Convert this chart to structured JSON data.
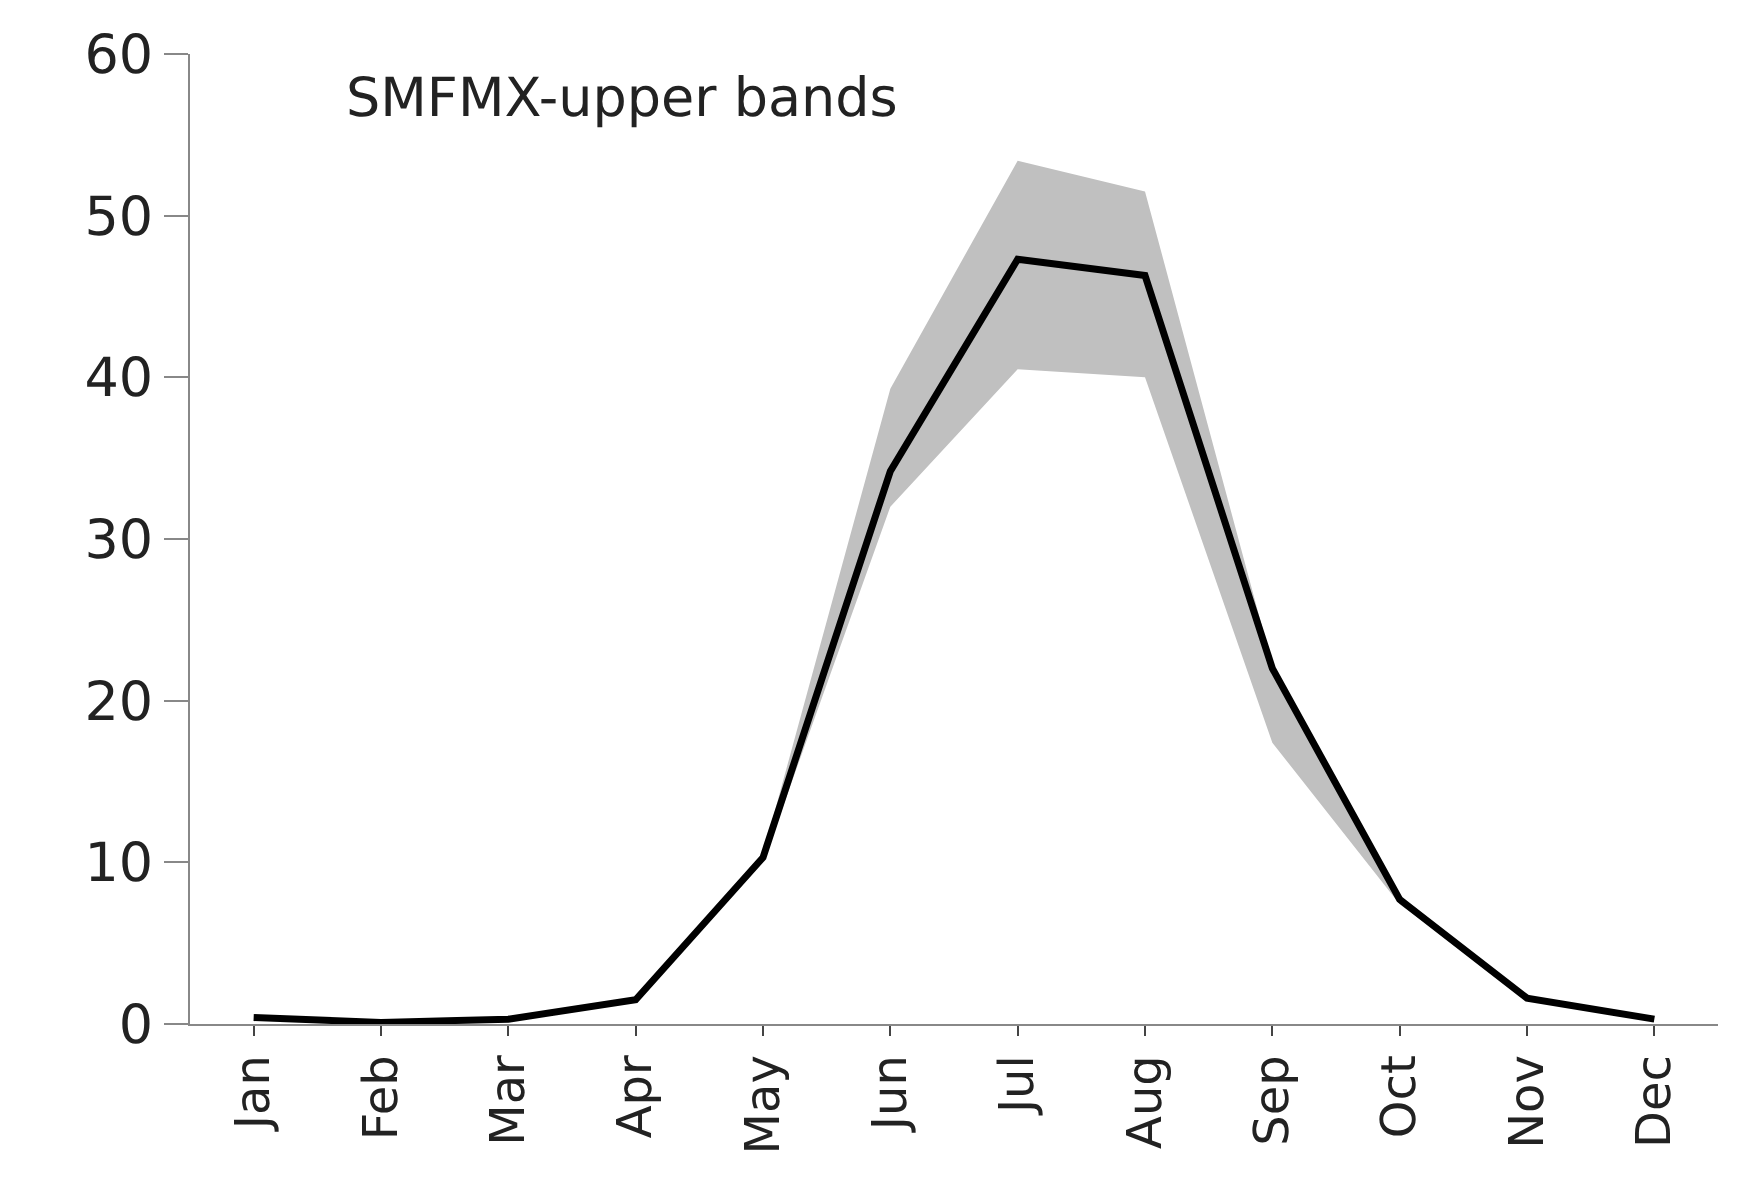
{
  "chart_data": {
    "type": "line",
    "title": "SMFMX-upper bands",
    "categories": [
      "Jan",
      "Feb",
      "Mar",
      "Apr",
      "May",
      "Jun",
      "Jul",
      "Aug",
      "Sep",
      "Oct",
      "Nov",
      "Dec"
    ],
    "series": [
      {
        "color": "#000000",
        "values": [
          0.4,
          0.1,
          0.3,
          1.5,
          10.3,
          34.2,
          47.3,
          46.3,
          22,
          7.7,
          1.6,
          0.3
        ],
        "lower": [
          0.4,
          0.1,
          0.3,
          1.5,
          10,
          32,
          40.5,
          40,
          17.4,
          7.4,
          1.6,
          0.3
        ],
        "upper": [
          0.4,
          0.1,
          0.3,
          1.5,
          10.5,
          39.3,
          53.4,
          51.5,
          22.2,
          8,
          1.6,
          0.3
        ]
      }
    ],
    "ylim": [
      0,
      60
    ],
    "yticks": [
      0,
      10,
      20,
      30,
      40,
      50,
      60
    ],
    "grid": false
  }
}
